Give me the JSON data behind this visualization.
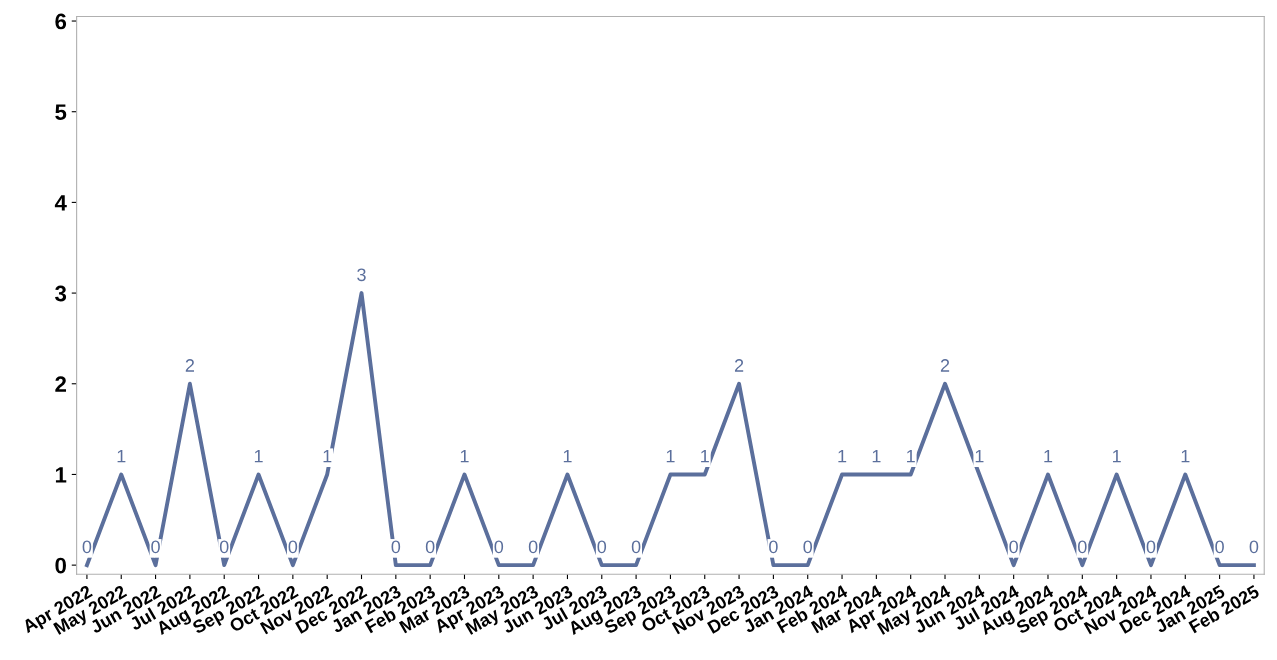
{
  "chart_data": {
    "type": "line",
    "categories": [
      "Apr 2022",
      "May 2022",
      "Jun 2022",
      "Jul 2022",
      "Aug 2022",
      "Sep 2022",
      "Oct 2022",
      "Nov 2022",
      "Dec 2022",
      "Jan 2023",
      "Feb 2023",
      "Mar 2023",
      "Apr 2023",
      "May 2023",
      "Jun 2023",
      "Jul 2023",
      "Aug 2023",
      "Sep 2023",
      "Oct 2023",
      "Nov 2023",
      "Dec 2023",
      "Jan 2024",
      "Feb 2024",
      "Mar 2024",
      "Apr 2024",
      "May 2024",
      "Jun 2024",
      "Jul 2024",
      "Aug 2024",
      "Sep 2024",
      "Oct 2024",
      "Nov 2024",
      "Dec 2024",
      "Jan 2025",
      "Feb 2025"
    ],
    "series": [
      {
        "color": "#5b6f9c",
        "values": [
          0,
          1,
          0,
          2,
          0,
          1,
          0,
          1,
          3,
          0,
          0,
          1,
          0,
          0,
          1,
          0,
          0,
          1,
          1,
          2,
          0,
          0,
          1,
          1,
          1,
          2,
          1,
          0,
          1,
          0,
          1,
          0,
          1,
          0,
          0
        ]
      }
    ],
    "ylim": [
      -0.1,
      6.05
    ],
    "yticks": [
      0,
      1,
      2,
      3,
      4,
      5,
      6
    ],
    "grid": false,
    "legend": false,
    "marker": "none",
    "line_style": "solid",
    "data_labels": true
  }
}
